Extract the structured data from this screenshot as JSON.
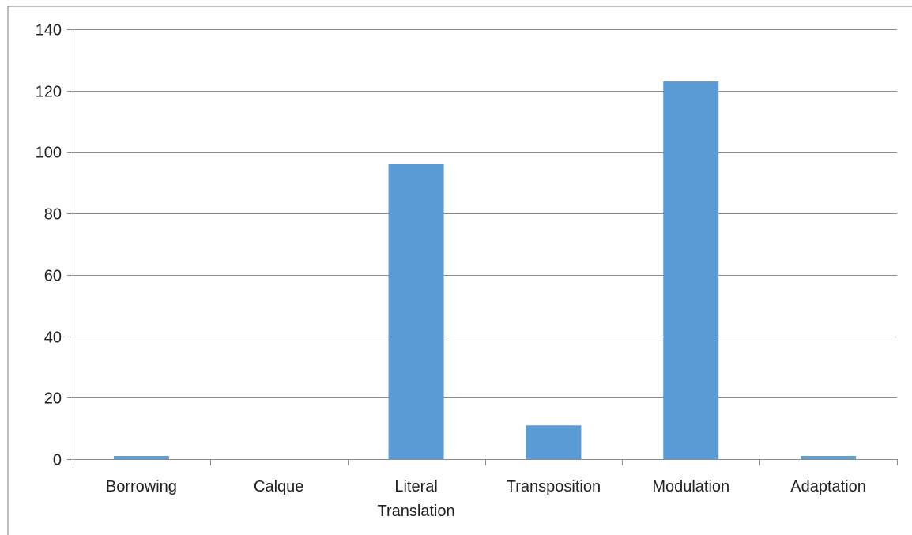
{
  "chart_data": {
    "type": "bar",
    "categories": [
      [
        "Borrowing"
      ],
      [
        "Calque"
      ],
      [
        "Literal",
        "Translation"
      ],
      [
        "Transposition"
      ],
      [
        "Modulation"
      ],
      [
        "Adaptation"
      ]
    ],
    "values": [
      1,
      0,
      96,
      11,
      123,
      1
    ],
    "ylim": [
      0,
      140
    ],
    "yticks": [
      0,
      20,
      40,
      60,
      80,
      100,
      120,
      140
    ],
    "grid": true,
    "legend": "none",
    "bar_color": "#5B9BD5",
    "grid_color": "#8C8C8C"
  }
}
